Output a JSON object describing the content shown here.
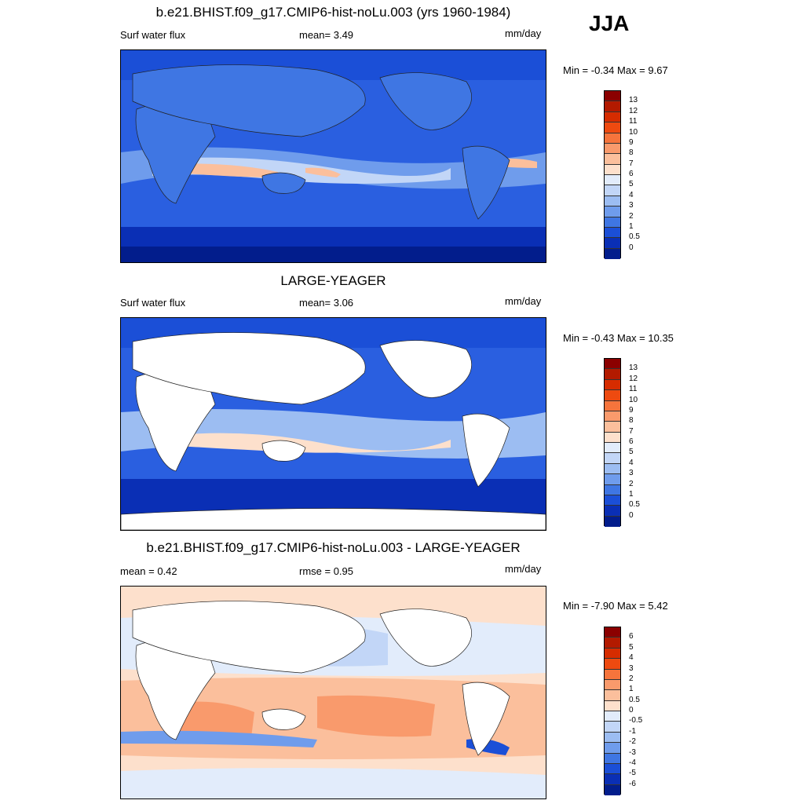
{
  "season": "JJA",
  "units": "mm/day",
  "panels": [
    {
      "title": "b.e21.BHIST.f09_g17.CMIP6-hist-noLu.003 (yrs 1960-1984)",
      "left_label": "Surf water flux",
      "mid_label": "mean=   3.49",
      "units": "mm/day",
      "minmax": "Min =  -0.34 Max =   9.67",
      "land_masked": false,
      "colorbar": {
        "labels": [
          "13",
          "12",
          "11",
          "10",
          "9",
          "8",
          "7",
          "6",
          "5",
          "4",
          "3",
          "2",
          "1",
          "0.5",
          "0"
        ],
        "colors": [
          "#8b0000",
          "#b31a00",
          "#d62c00",
          "#ee4a10",
          "#f6743c",
          "#f99a6c",
          "#fbbf9c",
          "#fde0cc",
          "#e2ecfb",
          "#c2d6f7",
          "#9cbdf2",
          "#6f9cec",
          "#3f76e3",
          "#1b4fd7",
          "#0a2fb5",
          "#021d8c"
        ]
      }
    },
    {
      "title": "LARGE-YEAGER",
      "left_label": "Surf water flux",
      "mid_label": "mean=   3.06",
      "units": "mm/day",
      "minmax": "Min =  -0.43 Max =  10.35",
      "land_masked": true,
      "colorbar": {
        "labels": [
          "13",
          "12",
          "11",
          "10",
          "9",
          "8",
          "7",
          "6",
          "5",
          "4",
          "3",
          "2",
          "1",
          "0.5",
          "0"
        ],
        "colors": [
          "#8b0000",
          "#b31a00",
          "#d62c00",
          "#ee4a10",
          "#f6743c",
          "#f99a6c",
          "#fbbf9c",
          "#fde0cc",
          "#e2ecfb",
          "#c2d6f7",
          "#9cbdf2",
          "#6f9cec",
          "#3f76e3",
          "#1b4fd7",
          "#0a2fb5",
          "#021d8c"
        ]
      }
    },
    {
      "title": "b.e21.BHIST.f09_g17.CMIP6-hist-noLu.003 - LARGE-YEAGER",
      "left_label": "mean =   0.42",
      "mid_label": "rmse =   0.95",
      "units": "mm/day",
      "minmax": "Min =  -7.90 Max =   5.42",
      "land_masked": true,
      "colorbar": {
        "labels": [
          "6",
          "5",
          "4",
          "3",
          "2",
          "1",
          "0.5",
          "0",
          "-0.5",
          "-1",
          "-2",
          "-3",
          "-4",
          "-5",
          "-6"
        ],
        "colors": [
          "#8b0000",
          "#b31a00",
          "#d62c00",
          "#ee4a10",
          "#f6743c",
          "#f99a6c",
          "#fbbf9c",
          "#fde0cc",
          "#e2ecfb",
          "#c2d6f7",
          "#9cbdf2",
          "#6f9cec",
          "#3f76e3",
          "#1b4fd7",
          "#0a2fb5",
          "#021d8c"
        ]
      }
    }
  ]
}
